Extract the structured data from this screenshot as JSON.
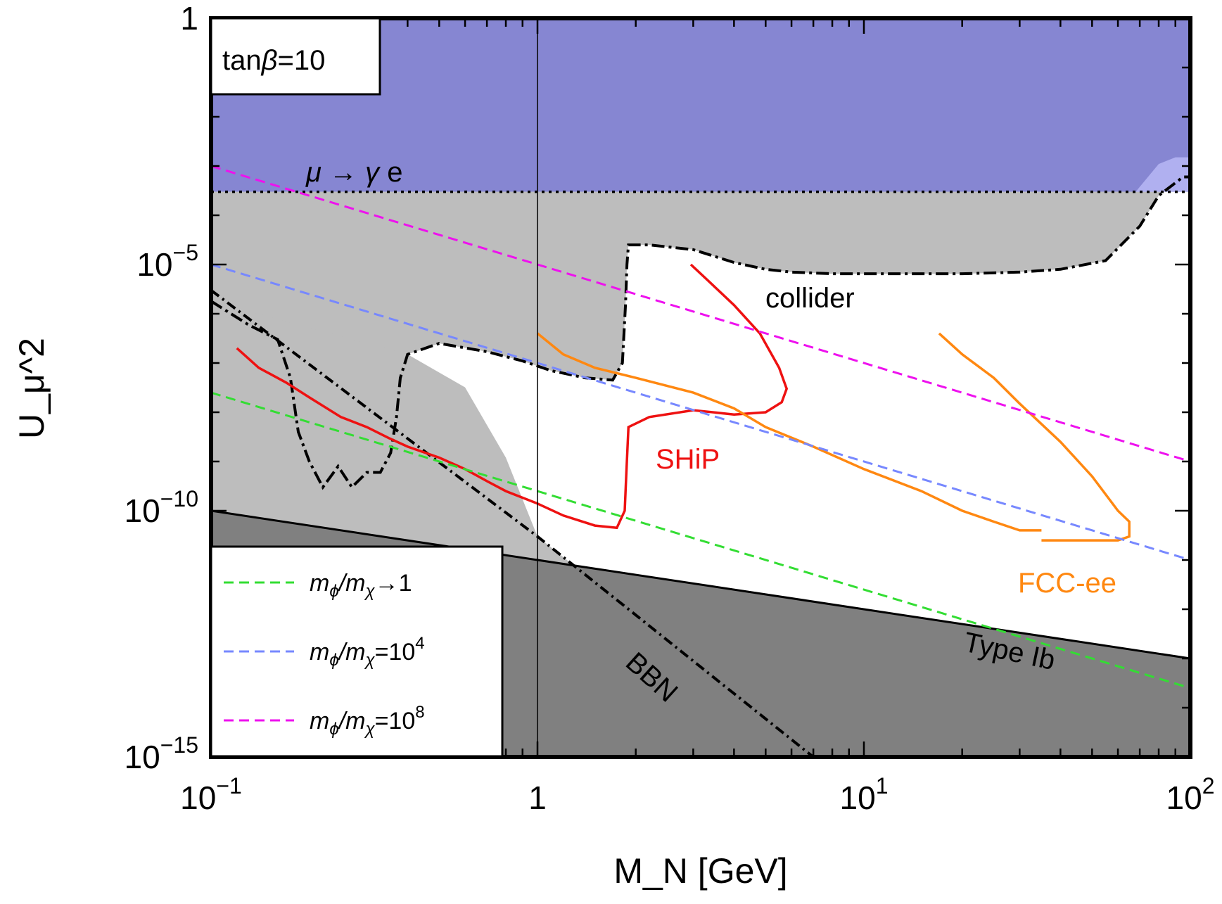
{
  "chart_data": {
    "type": "line",
    "title": "",
    "xlabel": "M_N [GeV]",
    "ylabel": "U_μ^2",
    "xscale": "log",
    "yscale": "log",
    "xlim": [
      0.1,
      100
    ],
    "ylim": [
      1e-15,
      1
    ],
    "x_ticks": [
      {
        "value": 0.1,
        "base": "10",
        "exp": "−1"
      },
      {
        "value": 1,
        "base": "1",
        "exp": ""
      },
      {
        "value": 10,
        "base": "10",
        "exp": "1"
      },
      {
        "value": 100,
        "base": "10",
        "exp": "2"
      }
    ],
    "y_ticks": [
      {
        "value": 1,
        "base": "1",
        "exp": ""
      },
      {
        "value": 1e-05,
        "base": "10",
        "exp": "−5"
      },
      {
        "value": 1e-10,
        "base": "10",
        "exp": "−10"
      },
      {
        "value": 1e-15,
        "base": "10",
        "exp": "−15"
      }
    ],
    "box_label": {
      "prefix": "tan",
      "beta": "β",
      "suffix": "=10"
    },
    "regions": [
      {
        "name": "mu-to-gamma-e",
        "label_parts": [
          "μ",
          " → ",
          "γ",
          " e"
        ],
        "color": "#8686d2",
        "boundary_x": [
          0.1,
          100
        ],
        "boundary_y": [
          0.0003,
          0.0003
        ]
      },
      {
        "name": "collider",
        "label": "collider",
        "color": "#bdbdbd",
        "boundary_x": [
          0.1,
          0.13,
          0.16,
          0.175,
          0.185,
          0.2,
          0.22,
          0.245,
          0.27,
          0.3,
          0.33,
          0.355,
          0.37,
          0.38,
          0.4,
          0.5,
          0.7,
          0.9,
          1.1,
          1.4,
          1.7,
          1.82,
          1.86,
          1.88,
          1.9,
          2.2,
          3.0,
          4.0,
          5.0,
          6.0,
          8.0,
          12.0,
          20.0,
          30.0,
          40.0,
          55.0,
          70.0,
          80.0,
          95.0,
          100.0
        ],
        "boundary_y": [
          1.8e-06,
          6e-07,
          3e-07,
          5e-08,
          4e-09,
          1e-09,
          3e-10,
          8e-10,
          3e-10,
          6e-10,
          6e-10,
          1.5e-09,
          8e-09,
          5e-08,
          1.5e-07,
          2.5e-07,
          1.7e-07,
          1.1e-07,
          7e-08,
          5e-08,
          4.5e-08,
          1e-07,
          1.5e-06,
          1e-05,
          2.5e-05,
          2.5e-05,
          2e-05,
          1.1e-05,
          8e-06,
          7e-06,
          6.5e-06,
          6.5e-06,
          6.5e-06,
          7e-06,
          8e-06,
          1.2e-05,
          6e-05,
          0.00025,
          0.0006,
          0.0006
        ]
      },
      {
        "name": "type-ib",
        "label": "Type Ib",
        "color": "#808080",
        "boundary_x": [
          0.1,
          100
        ],
        "boundary_y": [
          1e-10,
          1e-13
        ]
      },
      {
        "name": "bbn",
        "label": "BBN",
        "color": "#808080",
        "boundary_x": [
          0.1,
          1.0,
          7.0
        ],
        "boundary_y": [
          3e-06,
          3e-11,
          1e-15
        ]
      }
    ],
    "series": [
      {
        "name": "SHiP",
        "label": "SHiP",
        "color": "#ee1111",
        "style": "solid",
        "x": [
          0.12,
          0.14,
          0.17,
          0.2,
          0.25,
          0.3,
          0.35,
          0.4,
          0.5,
          0.6,
          0.7,
          0.8,
          1.0,
          1.2,
          1.5,
          1.75,
          1.85,
          1.87,
          1.9,
          2.2,
          3.0,
          4.0,
          5.0,
          5.6,
          5.8,
          5.5,
          4.8,
          4.0,
          3.3,
          2.95
        ],
        "y": [
          2e-07,
          8e-08,
          4e-08,
          2e-08,
          8e-09,
          5e-09,
          3e-09,
          2e-09,
          1.2e-09,
          7e-10,
          4e-10,
          2.5e-10,
          1.4e-10,
          8e-11,
          5e-11,
          4.5e-11,
          1e-10,
          5e-10,
          5e-09,
          8e-09,
          1.1e-08,
          9e-09,
          1e-08,
          1.6e-08,
          3e-08,
          8e-08,
          4e-07,
          1.5e-06,
          5e-06,
          1e-05
        ]
      },
      {
        "name": "FCC-ee-1",
        "label": "FCC-ee",
        "color": "#ff8811",
        "style": "solid",
        "x": [
          1.0,
          1.2,
          1.5,
          2.0,
          3.0,
          4.0,
          5.0,
          7.0,
          10.0,
          15.0,
          20.0,
          25.0,
          30.0,
          35.0
        ],
        "y": [
          4e-07,
          1.5e-07,
          8e-08,
          5e-08,
          2.5e-08,
          1.2e-08,
          5e-09,
          2e-09,
          7e-10,
          2.5e-10,
          1e-10,
          6e-11,
          4e-11,
          4e-11
        ]
      },
      {
        "name": "FCC-ee-2",
        "label": "",
        "color": "#ff8811",
        "style": "solid",
        "x": [
          17.0,
          20.0,
          25.0,
          30.0,
          40.0,
          50.0,
          60.0,
          65.0,
          65.0,
          60.0,
          50.0,
          45.0,
          40.0,
          35.0
        ],
        "y": [
          4e-07,
          1.5e-07,
          5e-08,
          1.5e-08,
          2.5e-09,
          5e-10,
          1e-10,
          6e-11,
          3e-11,
          2.5e-11,
          2.5e-11,
          2.5e-11,
          2.5e-11,
          2.5e-11
        ]
      },
      {
        "name": "m_phi/m_chi -> 1",
        "label_parts": [
          "m",
          "ϕ",
          "/m",
          "χ",
          "→1"
        ],
        "color": "#33dd33",
        "style": "dashed",
        "x": [
          0.1,
          100
        ],
        "y": [
          2.5e-08,
          2.5e-14
        ]
      },
      {
        "name": "m_phi/m_chi = 10^4",
        "label_parts": [
          "m",
          "ϕ",
          "/m",
          "χ",
          "=10",
          "4"
        ],
        "color": "#7788ff",
        "style": "dashed",
        "x": [
          0.1,
          100
        ],
        "y": [
          1e-05,
          1e-11
        ]
      },
      {
        "name": "m_phi/m_chi = 10^8",
        "label_parts": [
          "m",
          "ϕ",
          "/m",
          "χ",
          "=10",
          "8"
        ],
        "color": "#ee11ee",
        "style": "dashed",
        "x": [
          0.1,
          100
        ],
        "y": [
          0.001,
          1e-09
        ]
      }
    ],
    "reference_lines": [
      {
        "axis": "x",
        "value": 1,
        "color": "#000000"
      }
    ],
    "legend": {
      "location": "bottom-left",
      "entries": [
        "m_phi/m_chi -> 1",
        "m_phi/m_chi = 10^4",
        "m_phi/m_chi = 10^8"
      ]
    },
    "grid": false
  }
}
